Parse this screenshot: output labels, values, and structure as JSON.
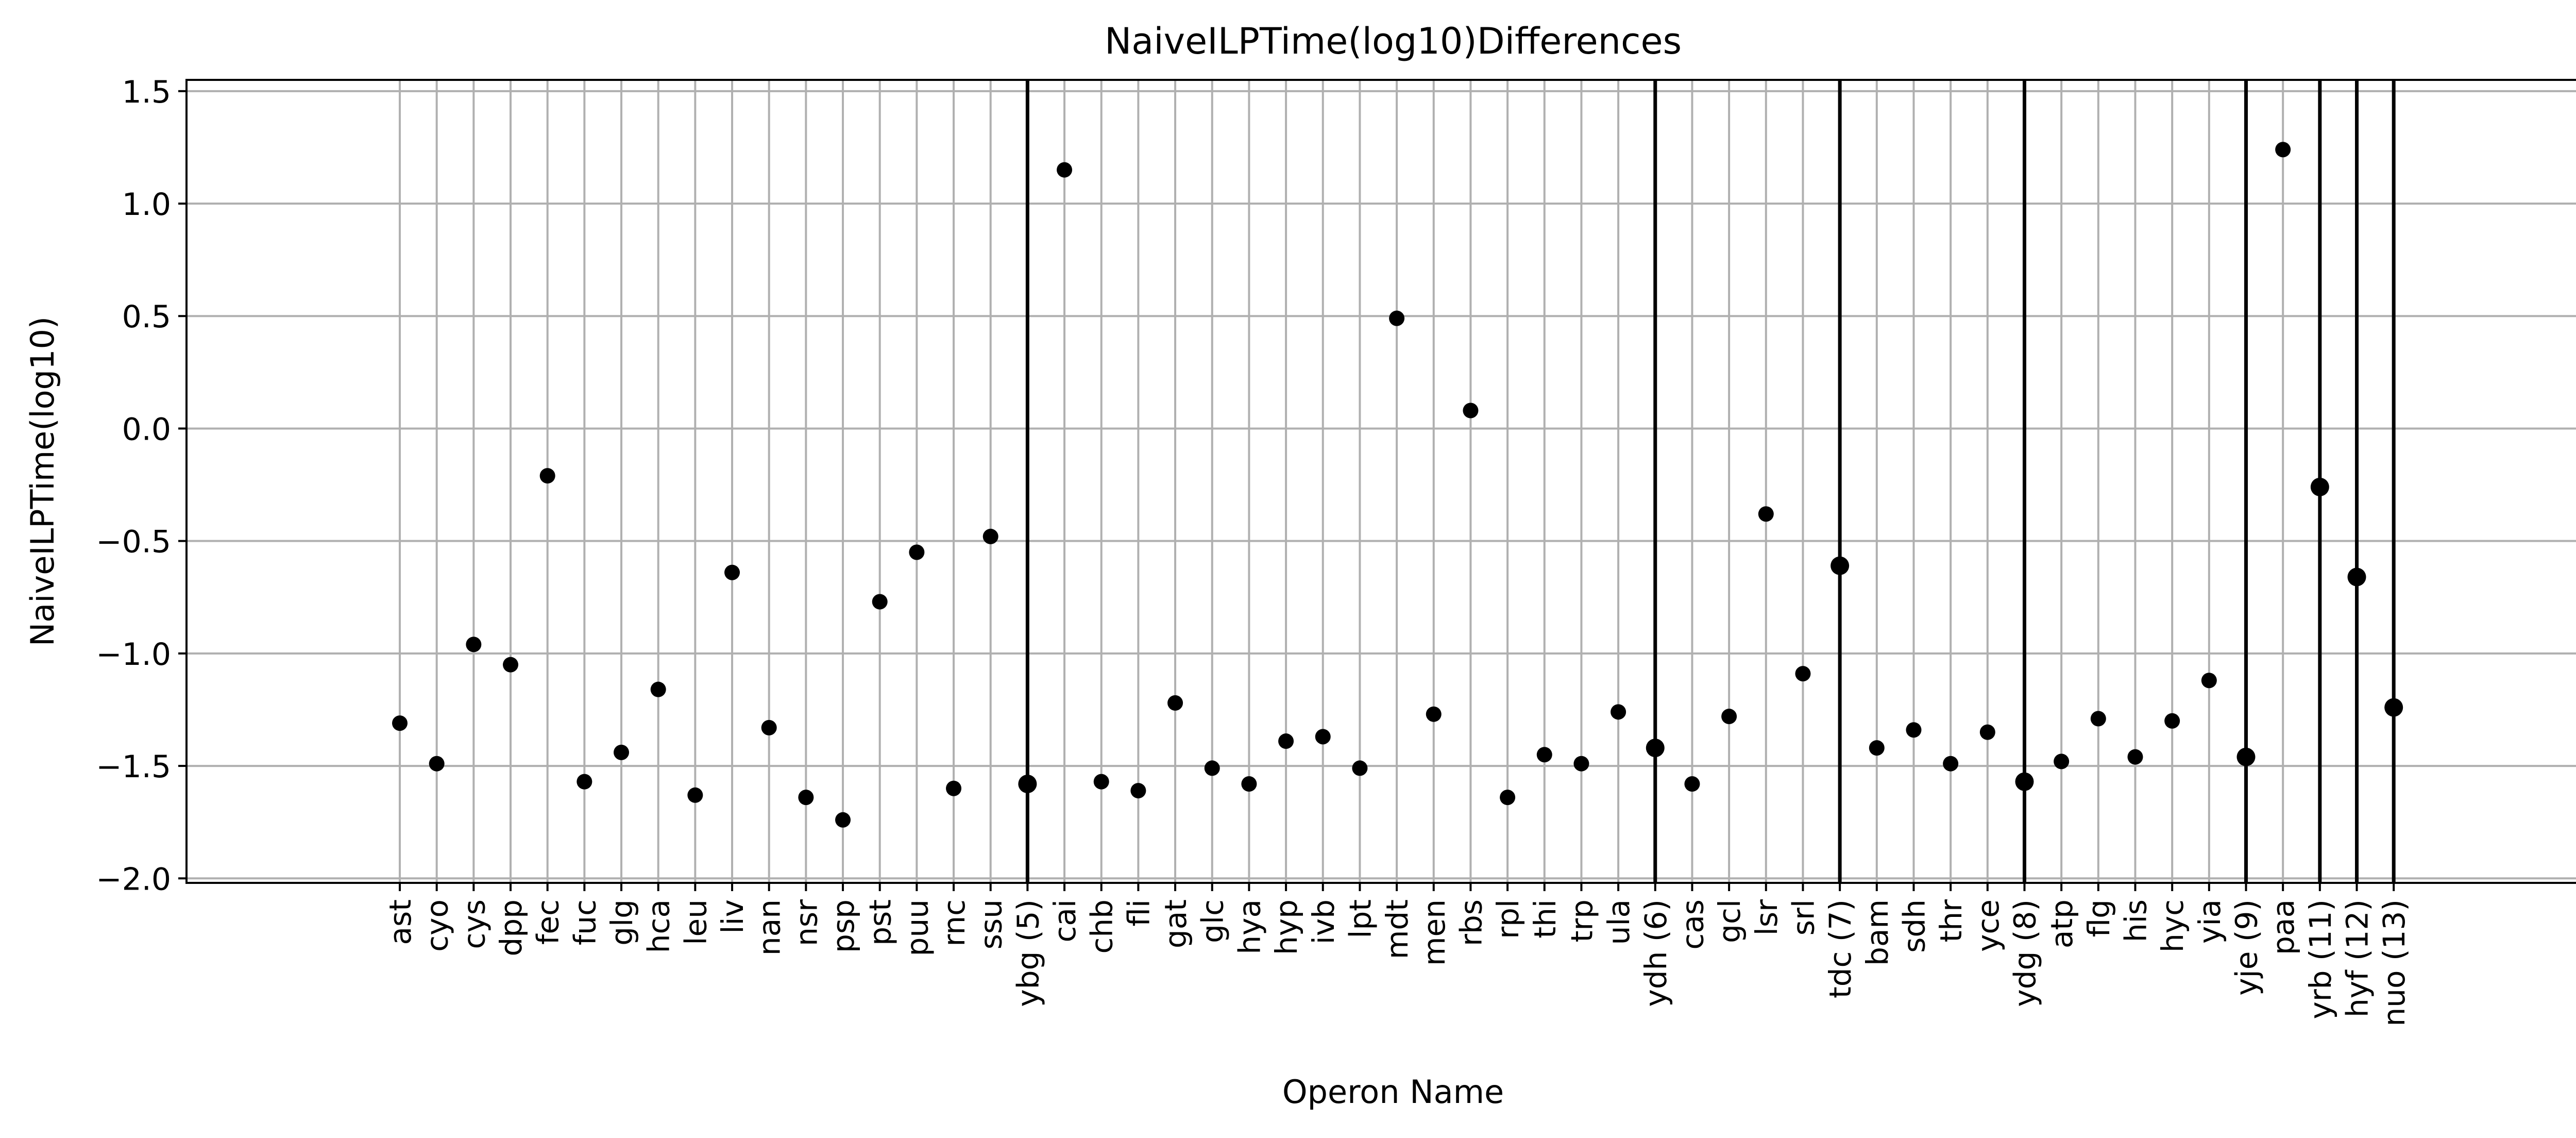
{
  "chart_data": {
    "type": "scatter",
    "title": "NaiveILPTime(log10)Differences",
    "xlabel": "Operon Name",
    "ylabel": "NaiveILPTime(log10)",
    "ylim": [
      -2.02,
      1.55
    ],
    "yticks": [
      1.5,
      1.0,
      0.5,
      0.0,
      -0.5,
      -1.0,
      -1.5,
      -2.0
    ],
    "ytick_labels": [
      "1.5",
      "1.0",
      "0.5",
      "0.0",
      "−0.5",
      "−1.0",
      "−1.5",
      "−2.0"
    ],
    "grid": true,
    "legend": "none",
    "categories": [
      "ast",
      "cyo",
      "cys",
      "dpp",
      "fec",
      "fuc",
      "glg",
      "hca",
      "leu",
      "liv",
      "nan",
      "nsr",
      "psp",
      "pst",
      "puu",
      "rnc",
      "ssu",
      "ybg (5)",
      "cai",
      "chb",
      "fli",
      "gat",
      "glc",
      "hya",
      "hyp",
      "ivb",
      "lpt",
      "mdt",
      "men",
      "rbs",
      "rpl",
      "thi",
      "trp",
      "ula",
      "ydh (6)",
      "cas",
      "gcl",
      "lsr",
      "srl",
      "tdc (7)",
      "bam",
      "sdh",
      "thr",
      "yce",
      "ydg (8)",
      "atp",
      "flg",
      "his",
      "hyc",
      "yia",
      "yje (9)",
      "paa",
      "yrb (11)",
      "hyf (12)",
      "nuo (13)"
    ],
    "values": [
      -1.31,
      -1.49,
      -0.96,
      -1.05,
      -0.21,
      -1.57,
      -1.44,
      -1.16,
      -1.63,
      -0.64,
      -1.33,
      -1.64,
      -1.74,
      -0.77,
      -0.55,
      -1.6,
      -0.48,
      -1.58,
      1.15,
      -1.57,
      -1.61,
      -1.22,
      -1.51,
      -1.58,
      -1.39,
      -1.37,
      -1.51,
      0.49,
      -1.27,
      0.08,
      -1.64,
      -1.45,
      -1.49,
      -1.26,
      -1.42,
      -1.58,
      -1.28,
      -0.38,
      -1.09,
      -0.61,
      -1.42,
      -1.34,
      -1.49,
      -1.35,
      -1.57,
      -1.48,
      -1.29,
      -1.46,
      -1.3,
      -1.12,
      -1.46,
      1.24,
      -0.26,
      -0.66,
      -1.24
    ],
    "highlighted_categories": [
      "ybg (5)",
      "ydh (6)",
      "tdc (7)",
      "ydg (8)",
      "yje (9)",
      "yrb (11)",
      "hyf (12)",
      "nuo (13)"
    ],
    "colors": {
      "marker": "#000000",
      "grid": "#b0b0b0",
      "highlight_line": "#000000",
      "axes": "#000000"
    }
  }
}
